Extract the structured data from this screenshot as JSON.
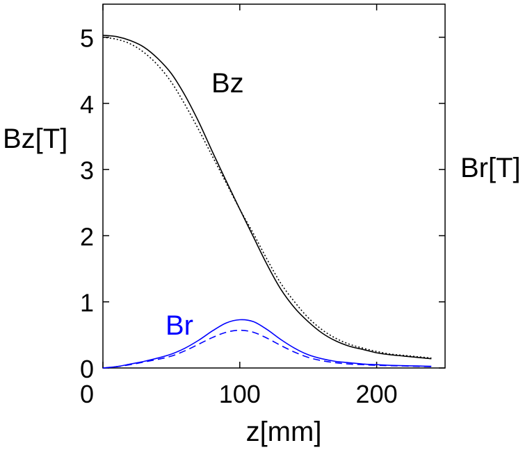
{
  "chart_data": {
    "type": "line",
    "xlabel": "z[mm]",
    "ylabel_left": "Bz[T]",
    "ylabel_right": "Br[T]",
    "xlim": [
      0,
      250
    ],
    "ylim": [
      0,
      5.5
    ],
    "x_ticks": [
      0,
      100,
      200
    ],
    "y_ticks": [
      0,
      1,
      2,
      3,
      4,
      5
    ],
    "x_tick_labels": [
      "0",
      "100",
      "200"
    ],
    "y_tick_labels": [
      "0",
      "1",
      "2",
      "3",
      "4",
      "5"
    ],
    "grid": false,
    "annotations": [
      {
        "text": "Bz",
        "color": "#000000"
      },
      {
        "text": "Br",
        "color": "#0000ff"
      }
    ],
    "series": [
      {
        "color": "#000000",
        "dash": "solid",
        "x": [
          0,
          10,
          20,
          30,
          40,
          50,
          60,
          70,
          80,
          90,
          100,
          110,
          120,
          130,
          140,
          150,
          160,
          170,
          180,
          190,
          200,
          210,
          220,
          230,
          240
        ],
        "y": [
          5.03,
          5.01,
          4.95,
          4.85,
          4.68,
          4.45,
          4.12,
          3.72,
          3.27,
          2.83,
          2.4,
          1.98,
          1.56,
          1.19,
          0.91,
          0.7,
          0.53,
          0.41,
          0.33,
          0.28,
          0.23,
          0.2,
          0.18,
          0.16,
          0.14
        ]
      },
      {
        "color": "#000000",
        "dash": "dotted",
        "x": [
          0,
          10,
          20,
          30,
          40,
          50,
          60,
          70,
          80,
          90,
          100,
          110,
          120,
          130,
          140,
          150,
          160,
          170,
          180,
          190,
          200,
          210,
          220,
          230,
          240
        ],
        "y": [
          5.0,
          4.97,
          4.9,
          4.77,
          4.58,
          4.32,
          3.98,
          3.6,
          3.2,
          2.8,
          2.4,
          2.03,
          1.64,
          1.28,
          1.0,
          0.76,
          0.58,
          0.45,
          0.36,
          0.3,
          0.25,
          0.21,
          0.19,
          0.17,
          0.15
        ]
      },
      {
        "color": "#0000ff",
        "dash": "solid",
        "x": [
          0,
          10,
          20,
          30,
          40,
          50,
          60,
          70,
          80,
          90,
          100,
          110,
          120,
          130,
          140,
          150,
          160,
          170,
          180,
          190,
          200,
          210,
          220,
          230,
          240
        ],
        "y": [
          0.0,
          0.02,
          0.06,
          0.1,
          0.15,
          0.21,
          0.3,
          0.42,
          0.56,
          0.68,
          0.73,
          0.7,
          0.58,
          0.43,
          0.3,
          0.2,
          0.14,
          0.1,
          0.08,
          0.06,
          0.05,
          0.04,
          0.035,
          0.03,
          0.025
        ]
      },
      {
        "color": "#0000ff",
        "dash": "dashed",
        "x": [
          0,
          10,
          20,
          30,
          40,
          50,
          60,
          70,
          80,
          90,
          100,
          110,
          120,
          130,
          140,
          150,
          160,
          170,
          180,
          190,
          200,
          210,
          220,
          230,
          240
        ],
        "y": [
          0.0,
          0.02,
          0.05,
          0.09,
          0.13,
          0.18,
          0.26,
          0.36,
          0.46,
          0.54,
          0.57,
          0.54,
          0.45,
          0.34,
          0.24,
          0.16,
          0.11,
          0.08,
          0.06,
          0.05,
          0.04,
          0.035,
          0.03,
          0.025,
          0.02
        ]
      }
    ]
  }
}
